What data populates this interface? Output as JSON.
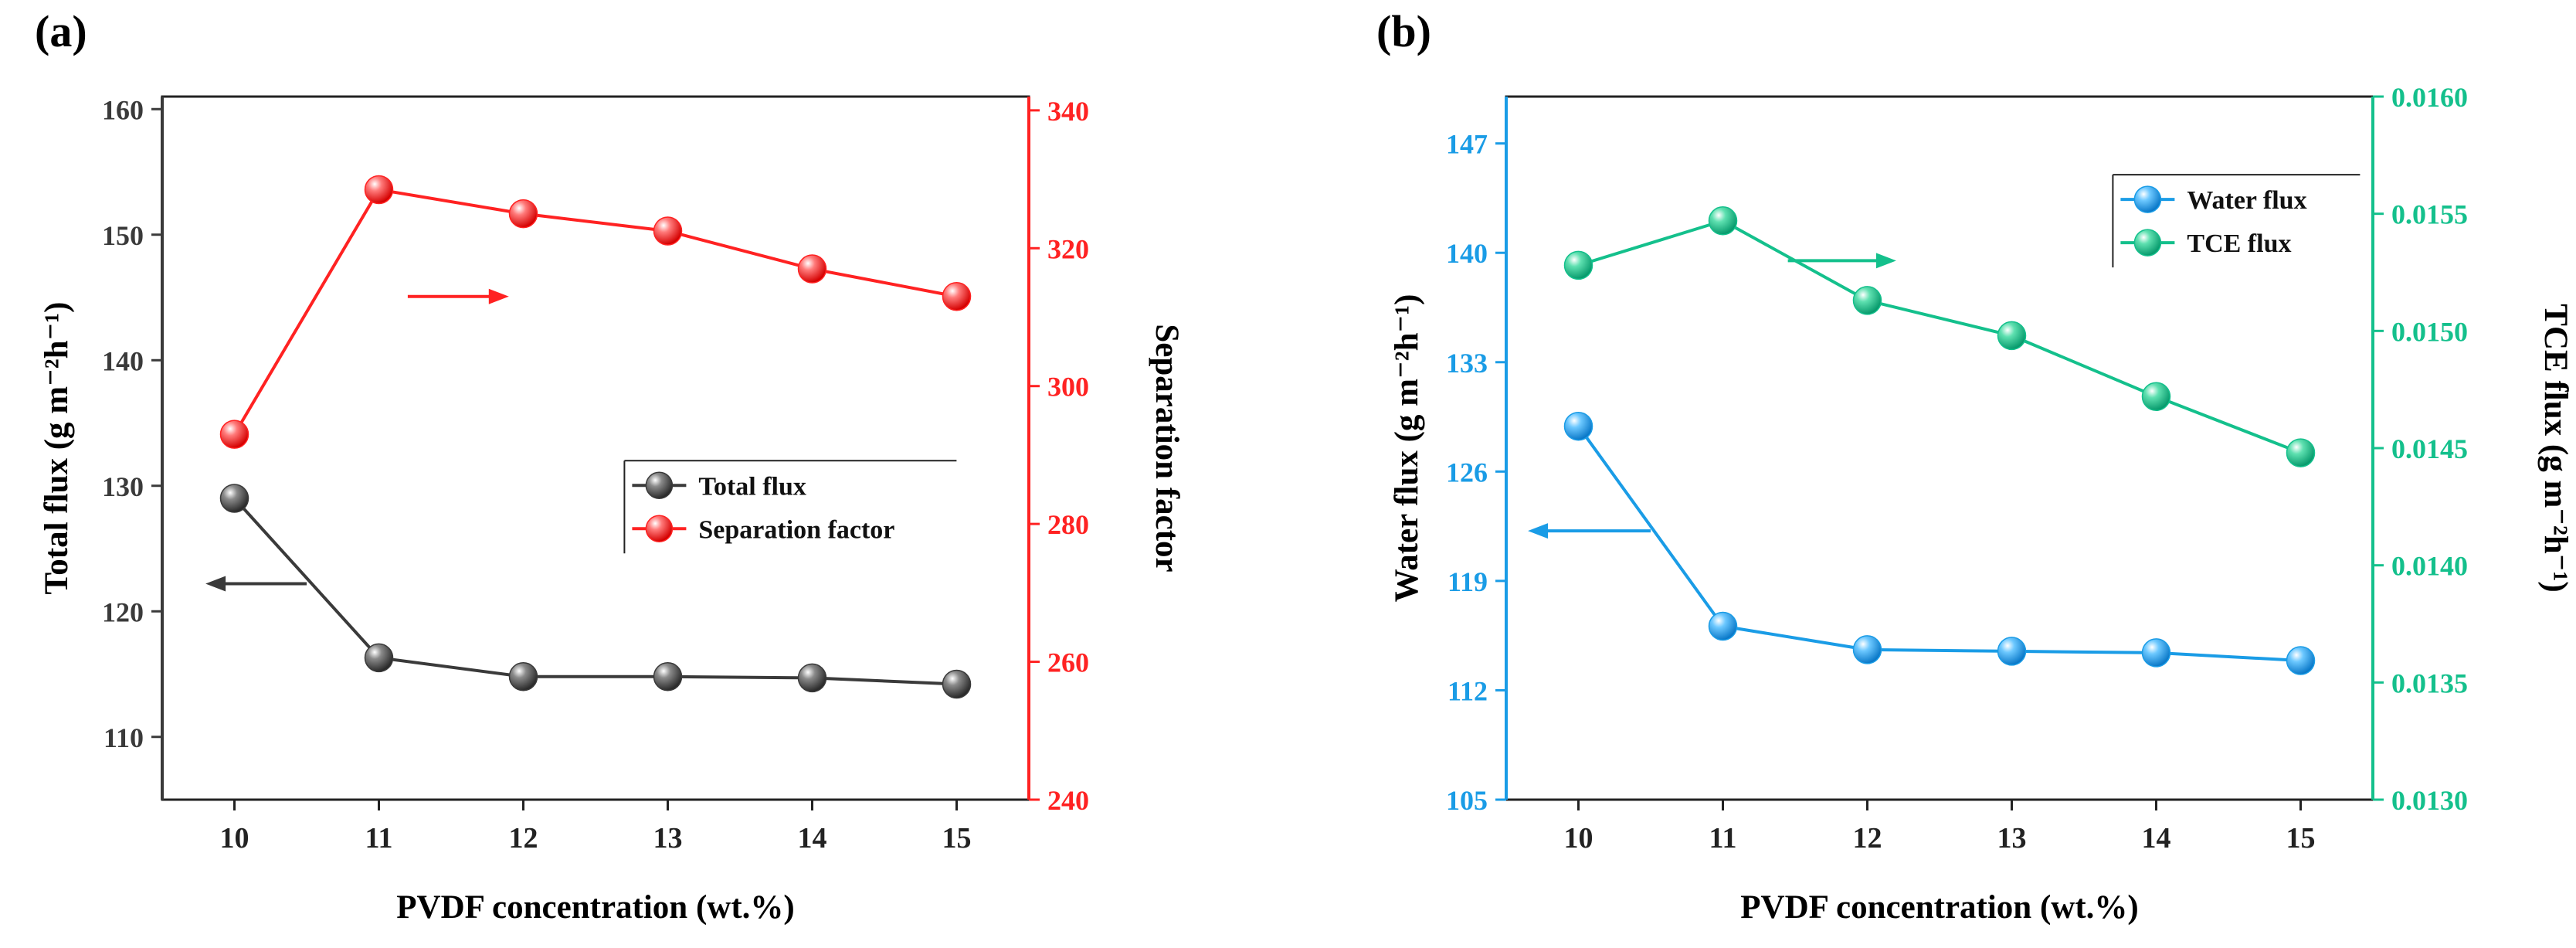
{
  "chart_data": [
    {
      "panel_label": "(a)",
      "type": "line",
      "xlabel": "PVDF concentration (wt.%)",
      "x": [
        10,
        11,
        12,
        13,
        14,
        15
      ],
      "xlim": [
        9.5,
        15.5
      ],
      "x_ticks": [
        "10",
        "11",
        "12",
        "13",
        "14",
        "15"
      ],
      "ylabel_left": "Total flux (g m⁻²h⁻¹)",
      "ylim_left": [
        105,
        161
      ],
      "y_ticks_left": [
        110,
        120,
        130,
        140,
        150,
        160
      ],
      "ylabel_right": "Separation factor",
      "ylim_right": [
        240,
        342
      ],
      "y_ticks_right": [
        240,
        260,
        280,
        300,
        320,
        340
      ],
      "series": [
        {
          "name": "Total flux",
          "axis": "left",
          "color": "#3a3a3a",
          "values": [
            129.0,
            116.3,
            114.8,
            114.8,
            114.7,
            114.2
          ],
          "arrow_direction": "left",
          "arrow": {
            "x": [
              10.5,
              9.8
            ],
            "y": 122.2
          }
        },
        {
          "name": "Separation factor",
          "axis": "right",
          "color": "#ff2222",
          "values": [
            293,
            328.5,
            325,
            322.5,
            317,
            313
          ],
          "arrow_direction": "right",
          "arrow": {
            "x": [
              11.2,
              11.9
            ],
            "y": 313
          }
        }
      ],
      "axis_colors": {
        "left": "#3a3a3a",
        "right": "#ff2222"
      },
      "legend": {
        "placement": "center-right",
        "anchor": {
          "x": 12.7,
          "y": 132
        }
      }
    },
    {
      "panel_label": "(b)",
      "type": "line",
      "xlabel": "PVDF concentration (wt.%)",
      "x": [
        10,
        11,
        12,
        13,
        14,
        15
      ],
      "xlim": [
        9.5,
        15.5
      ],
      "x_ticks": [
        "10",
        "11",
        "12",
        "13",
        "14",
        "15"
      ],
      "ylabel_left": "Water flux (g m⁻²h⁻¹)",
      "ylim_left": [
        105,
        150
      ],
      "y_ticks_left": [
        105,
        112,
        119,
        126,
        133,
        140,
        147
      ],
      "ylabel_right": "TCE flux (g m⁻²h⁻¹)",
      "ylim_right": [
        0.013,
        0.016
      ],
      "y_ticks_right": [
        "0.0130",
        "0.0135",
        "0.0140",
        "0.0145",
        "0.0150",
        "0.0155",
        "0.0160"
      ],
      "series": [
        {
          "name": "Water flux",
          "axis": "left",
          "color": "#1a9ce6",
          "values": [
            128.9,
            116.1,
            114.6,
            114.5,
            114.4,
            113.9
          ],
          "arrow_direction": "left",
          "arrow": {
            "x": [
              10.5,
              9.65
            ],
            "y": 122.2
          }
        },
        {
          "name": "TCE flux",
          "axis": "right",
          "color": "#14c08c",
          "values": [
            0.01528,
            0.01547,
            0.01513,
            0.01498,
            0.01472,
            0.01448
          ],
          "arrow_direction": "right",
          "arrow": {
            "x": [
              11.45,
              12.2
            ],
            "y": 0.0153
          }
        }
      ],
      "axis_colors": {
        "left": "#1a9ce6",
        "right": "#14c08c"
      },
      "legend": {
        "placement": "top-right",
        "anchor": {
          "x": 13.7,
          "y": 145
        }
      }
    }
  ]
}
